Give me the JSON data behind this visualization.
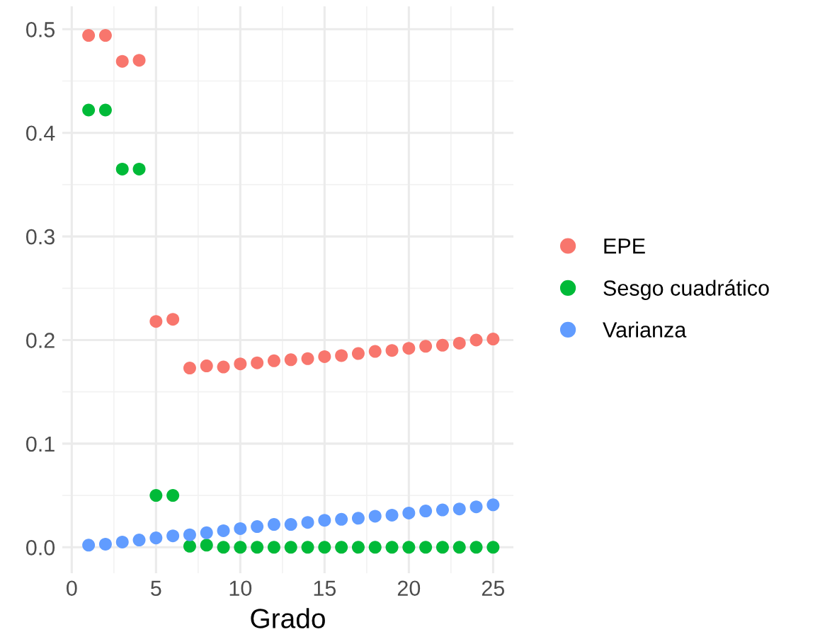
{
  "chart_data": {
    "type": "scatter",
    "xlabel": "Grado",
    "x": [
      1,
      2,
      3,
      4,
      5,
      6,
      7,
      8,
      9,
      10,
      11,
      12,
      13,
      14,
      15,
      16,
      17,
      18,
      19,
      20,
      21,
      22,
      23,
      24,
      25
    ],
    "series": [
      {
        "name": "EPE",
        "color": "#f8766d",
        "values": [
          0.494,
          0.494,
          0.469,
          0.47,
          0.218,
          0.22,
          0.173,
          0.175,
          0.174,
          0.177,
          0.178,
          0.18,
          0.181,
          0.182,
          0.184,
          0.185,
          0.187,
          0.189,
          0.19,
          0.192,
          0.194,
          0.195,
          0.197,
          0.2,
          0.201
        ]
      },
      {
        "name": "Sesgo cuadrático",
        "color": "#00ba38",
        "values": [
          0.422,
          0.422,
          0.365,
          0.365,
          0.05,
          0.05,
          0.001,
          0.002,
          0,
          0,
          0,
          0,
          0,
          0,
          0,
          0,
          0,
          0,
          0,
          0,
          0,
          0,
          0,
          0,
          0
        ]
      },
      {
        "name": "Varianza",
        "color": "#619cff",
        "values": [
          0.002,
          0.003,
          0.005,
          0.007,
          0.009,
          0.011,
          0.012,
          0.014,
          0.016,
          0.018,
          0.02,
          0.022,
          0.022,
          0.024,
          0.026,
          0.027,
          0.028,
          0.03,
          0.031,
          0.033,
          0.035,
          0.036,
          0.037,
          0.039,
          0.041
        ]
      }
    ],
    "xlim": [
      -0.56,
      26.2
    ],
    "xticks": [
      0,
      5,
      10,
      15,
      20,
      25
    ],
    "ylim": [
      -0.025,
      0.522
    ],
    "yticks": [
      {
        "value": 0,
        "label": "0.0"
      },
      0.1,
      0.2,
      0.3,
      0.4,
      0.5
    ],
    "grid": true,
    "legend": "right",
    "marker": "circle"
  }
}
